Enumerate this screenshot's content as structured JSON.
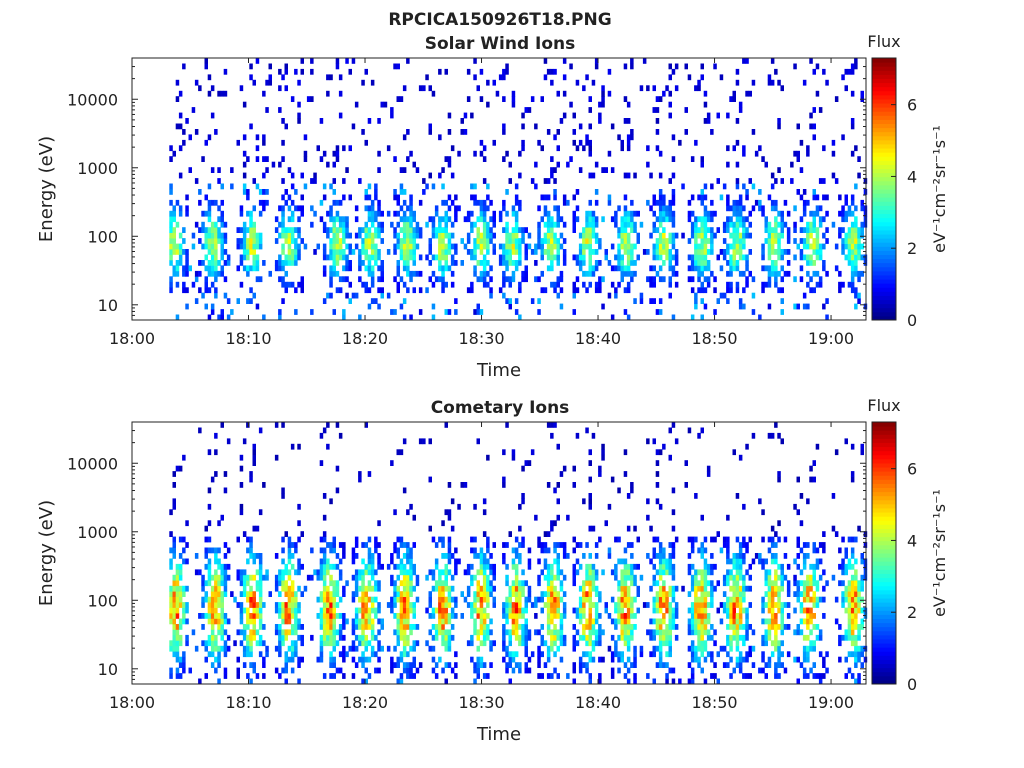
{
  "page_title": "RPCICA150926T18.PNG",
  "chart_data": [
    {
      "type": "heatmap",
      "title": "Solar Wind Ions",
      "xlabel": "Time",
      "ylabel": "Energy (eV)",
      "y_scale": "log",
      "xlim": [
        "18:00",
        "19:03"
      ],
      "ylim": [
        6,
        40000
      ],
      "x_ticks": [
        "18:00",
        "18:10",
        "18:20",
        "18:30",
        "18:40",
        "18:50",
        "19:00"
      ],
      "y_ticks": [
        "10",
        "100",
        "1000",
        "10000"
      ],
      "colorbar": {
        "title": "Flux",
        "label": "eV⁻¹cm⁻²sr⁻¹s⁻¹",
        "min": 0,
        "max": 7.3,
        "ticks": [
          "0",
          "2",
          "4",
          "6"
        ],
        "colormap": "jet"
      },
      "bursts_minutes": [
        3.5,
        6.8,
        10.2,
        13.3,
        17.5,
        20.3,
        23.5,
        26.5,
        29.8,
        32.5,
        35.8,
        39.0,
        42.3,
        45.5,
        48.8,
        51.8,
        55.0,
        58.3,
        61.8
      ],
      "core_energy_eV": [
        20,
        300
      ],
      "peak_flux": 4.2,
      "background_flux": 0.6
    },
    {
      "type": "heatmap",
      "title": "Cometary Ions",
      "xlabel": "Time",
      "ylabel": "Energy (eV)",
      "y_scale": "log",
      "xlim": [
        "18:00",
        "19:03"
      ],
      "ylim": [
        6,
        40000
      ],
      "x_ticks": [
        "18:00",
        "18:10",
        "18:20",
        "18:30",
        "18:40",
        "18:50",
        "19:00"
      ],
      "y_ticks": [
        "10",
        "100",
        "1000",
        "10000"
      ],
      "colorbar": {
        "title": "Flux",
        "label": "eV⁻¹cm⁻²sr⁻¹s⁻¹",
        "min": 0,
        "max": 7.3,
        "ticks": [
          "0",
          "2",
          "4",
          "6"
        ],
        "colormap": "jet"
      },
      "bursts_minutes": [
        3.6,
        7.0,
        10.2,
        13.3,
        16.8,
        20.0,
        23.3,
        26.5,
        29.8,
        32.8,
        36.0,
        39.0,
        42.2,
        45.5,
        48.7,
        51.7,
        55.0,
        58.0,
        61.8
      ],
      "core_energy_eV": [
        10,
        600
      ],
      "peak_flux": 5.6,
      "background_flux": 0.5
    }
  ]
}
